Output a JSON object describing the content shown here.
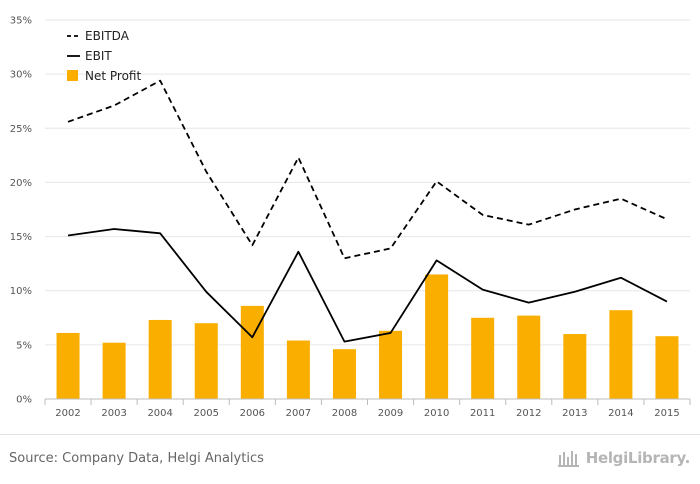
{
  "chart_data": {
    "type": "bar",
    "categories": [
      "2002",
      "2003",
      "2004",
      "2005",
      "2006",
      "2007",
      "2008",
      "2009",
      "2010",
      "2011",
      "2012",
      "2013",
      "2014",
      "2015"
    ],
    "series": [
      {
        "name": "EBITDA",
        "type": "line",
        "style": "dashed",
        "color": "#000000",
        "values": [
          25.6,
          27.1,
          29.4,
          21.0,
          14.2,
          22.3,
          13.0,
          13.9,
          20.1,
          17.0,
          16.1,
          17.5,
          18.5,
          16.6
        ]
      },
      {
        "name": "EBIT",
        "type": "line",
        "style": "solid",
        "color": "#000000",
        "values": [
          15.1,
          15.7,
          15.3,
          9.9,
          5.7,
          13.6,
          5.3,
          6.1,
          12.8,
          10.1,
          8.9,
          9.9,
          11.2,
          9.0
        ]
      },
      {
        "name": "Net Profit",
        "type": "bar",
        "color": "#f9ae00",
        "values": [
          6.1,
          5.2,
          7.3,
          7.0,
          8.6,
          5.4,
          4.6,
          6.3,
          11.5,
          7.5,
          7.7,
          6.0,
          8.2,
          5.8
        ]
      }
    ],
    "ylim": [
      0,
      35
    ],
    "yticks": [
      0,
      5,
      10,
      15,
      20,
      25,
      30,
      35
    ],
    "ytick_labels": [
      "0%",
      "5%",
      "10%",
      "15%",
      "20%",
      "25%",
      "30%",
      "35%"
    ],
    "grid": true,
    "legend": "top-left"
  },
  "footer": {
    "source": "Source: Company Data, Helgi Analytics",
    "brand": "HelgiLibrary."
  }
}
